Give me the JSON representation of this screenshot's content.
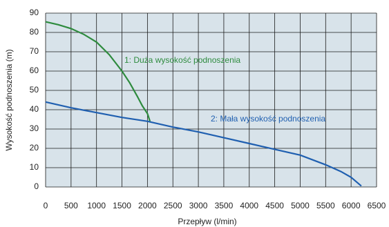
{
  "chart_data": {
    "type": "line",
    "x_label": "Przepływ (l/min)",
    "y_label": "Wysokość podnoszenia (m)",
    "series": [
      {
        "name": "1: Duża wysokość podnoszenia",
        "color": "#2e8b3e",
        "x": [
          0,
          250,
          500,
          750,
          1000,
          1250,
          1500,
          1650,
          1800,
          1900,
          2000,
          2050
        ],
        "values": [
          85.5,
          84,
          82,
          79,
          75,
          68.5,
          60,
          54,
          47,
          42,
          38,
          34
        ]
      },
      {
        "name": "2: Mała wysokość podnoszenia",
        "color": "#1f5fb0",
        "x": [
          0,
          500,
          1000,
          1500,
          2000,
          2500,
          3000,
          3500,
          4000,
          4500,
          5000,
          5500,
          5800,
          6000,
          6200
        ],
        "values": [
          44,
          41,
          38.5,
          36,
          34,
          31,
          28.5,
          25.5,
          22.5,
          19.5,
          16.5,
          11.5,
          8,
          5,
          0.5
        ]
      }
    ],
    "xlim": [
      0,
      6500
    ],
    "xticks": [
      0,
      500,
      1000,
      1500,
      2000,
      2500,
      3000,
      3500,
      4000,
      4500,
      5000,
      5500,
      6000,
      6500
    ],
    "ylim": [
      0,
      90
    ],
    "yticks": [
      0,
      10,
      20,
      30,
      40,
      50,
      60,
      70,
      80,
      90
    ],
    "grid": true
  }
}
